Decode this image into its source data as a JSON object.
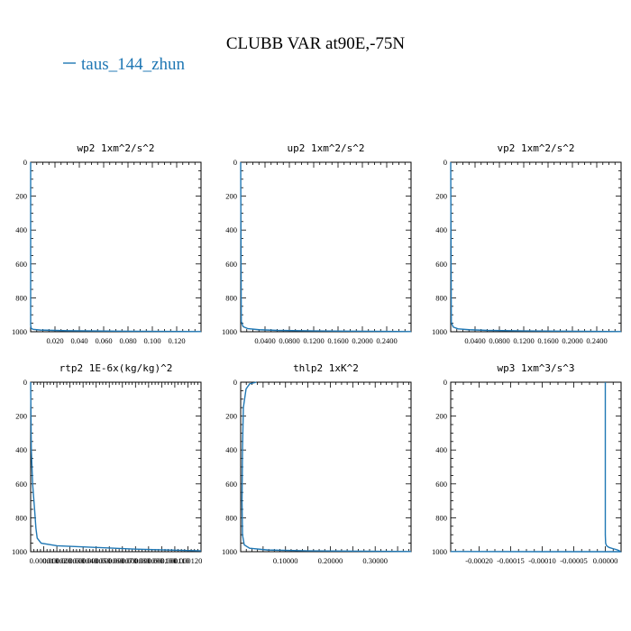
{
  "figure": {
    "title": "CLUBB VAR at90E,-75N",
    "legend": {
      "label": "taus_144_zhun",
      "color": "#1f77b4",
      "placement": "top-left"
    }
  },
  "chart_data": [
    {
      "type": "line",
      "title": "wp2  1xm^2/s^2",
      "xlim": [
        0.0,
        0.14
      ],
      "ylim": [
        1000,
        0
      ],
      "xticks": [
        0.02,
        0.04,
        0.06,
        0.08,
        0.1,
        0.12
      ],
      "xtick_labels": [
        "0.020",
        "0.040",
        "0.060",
        "0.080",
        "0.100",
        "0.120"
      ],
      "yticks": [
        0,
        200,
        400,
        600,
        800,
        1000
      ],
      "ytick_labels": [
        "0",
        "200",
        "400",
        "600",
        "800",
        "1000"
      ],
      "series": [
        {
          "name": "taus_144_zhun",
          "x": [
            0.0,
            0.0,
            0.0005,
            0.002,
            0.008,
            0.03,
            0.08,
            0.14
          ],
          "y": [
            0,
            960,
            980,
            986,
            990,
            994,
            997,
            999
          ]
        }
      ]
    },
    {
      "type": "line",
      "title": "up2  1xm^2/s^2",
      "xlim": [
        0.0,
        0.28
      ],
      "ylim": [
        1000,
        0
      ],
      "xticks": [
        0.04,
        0.08,
        0.12,
        0.16,
        0.2,
        0.24
      ],
      "xtick_labels": [
        "0.0400",
        "0.0800",
        "0.1200",
        "0.1600",
        "0.2000",
        "0.2400"
      ],
      "yticks": [
        0,
        200,
        400,
        600,
        800,
        1000
      ],
      "ytick_labels": [
        "0",
        "200",
        "400",
        "600",
        "800",
        "1000"
      ],
      "series": [
        {
          "name": "taus_144_zhun",
          "x": [
            0.0,
            0.001,
            0.004,
            0.012,
            0.03,
            0.06,
            0.12,
            0.2,
            0.28
          ],
          "y": [
            0,
            940,
            970,
            982,
            988,
            992,
            995,
            997,
            999
          ]
        }
      ]
    },
    {
      "type": "line",
      "title": "vp2  1xm^2/s^2",
      "xlim": [
        0.0,
        0.28
      ],
      "ylim": [
        1000,
        0
      ],
      "xticks": [
        0.04,
        0.08,
        0.12,
        0.16,
        0.2,
        0.24
      ],
      "xtick_labels": [
        "0.0400",
        "0.0800",
        "0.1200",
        "0.1600",
        "0.2000",
        "0.2400"
      ],
      "yticks": [
        0,
        200,
        400,
        600,
        800,
        1000
      ],
      "ytick_labels": [
        "0",
        "200",
        "400",
        "600",
        "800",
        "1000"
      ],
      "series": [
        {
          "name": "taus_144_zhun",
          "x": [
            0.0,
            0.001,
            0.004,
            0.012,
            0.03,
            0.06,
            0.12,
            0.2,
            0.28
          ],
          "y": [
            0,
            945,
            972,
            983,
            988,
            992,
            995,
            997,
            999
          ]
        }
      ]
    },
    {
      "type": "line",
      "title": "rtp2  1E-6x(kg/kg)^2",
      "xlim": [
        0.0,
        0.13
      ],
      "ylim": [
        1000,
        0
      ],
      "xticks": [
        0.01,
        0.02,
        0.03,
        0.04,
        0.05,
        0.06,
        0.07,
        0.08,
        0.09,
        0.1,
        0.11,
        0.12
      ],
      "xtick_labels": [
        "0.000010",
        "0.000020",
        "0.000030",
        "0.000040",
        "0.000050",
        "0.000060",
        "0.000070",
        "0.000080",
        "0.000090",
        "0.000100",
        "0.000110",
        "0.000120"
      ],
      "yticks": [
        0,
        200,
        400,
        600,
        800,
        1000
      ],
      "ytick_labels": [
        "0",
        "200",
        "400",
        "600",
        "800",
        "1000"
      ],
      "series": [
        {
          "name": "taus_144_zhun",
          "x": [
            0.0,
            0.0005,
            0.0015,
            0.003,
            0.004,
            0.005,
            0.008,
            0.02,
            0.05,
            0.08,
            0.13
          ],
          "y": [
            0,
            400,
            600,
            750,
            860,
            920,
            950,
            965,
            975,
            985,
            995
          ]
        }
      ]
    },
    {
      "type": "line",
      "title": "thlp2  1xK^2",
      "xlim": [
        0.0,
        0.38
      ],
      "ylim": [
        1000,
        0
      ],
      "xticks": [
        0.05,
        0.1,
        0.15,
        0.2,
        0.25,
        0.3,
        0.35
      ],
      "xtick_labels": [
        "",
        "0.10000",
        "",
        "0.20000",
        "",
        "0.30000",
        ""
      ],
      "yticks": [
        0,
        200,
        400,
        600,
        800,
        1000
      ],
      "ytick_labels": [
        "0",
        "200",
        "400",
        "600",
        "800",
        "1000"
      ],
      "series": [
        {
          "name": "taus_144_zhun",
          "x": [
            0.035,
            0.02,
            0.012,
            0.006,
            0.004,
            0.003,
            0.004,
            0.008,
            0.02,
            0.06,
            0.15,
            0.38
          ],
          "y": [
            0,
            10,
            40,
            150,
            400,
            700,
            900,
            960,
            980,
            990,
            995,
            999
          ]
        }
      ]
    },
    {
      "type": "line",
      "title": "wp3  1xm^3/s^3",
      "xlim": [
        -0.000245,
        2.5e-05
      ],
      "ylim": [
        1000,
        0
      ],
      "xticks": [
        -0.0002,
        -0.00015,
        -0.0001,
        -5e-05,
        0.0
      ],
      "xtick_labels": [
        "-0.00020",
        "-0.00015",
        "-0.00010",
        "-0.00005",
        "0.00000"
      ],
      "yticks": [
        0,
        200,
        400,
        600,
        800,
        1000
      ],
      "ytick_labels": [
        "0",
        "200",
        "400",
        "600",
        "800",
        "1000"
      ],
      "series": [
        {
          "name": "taus_144_zhun",
          "x": [
            0.0,
            0.0,
            5e-07,
            2e-06,
            6e-06,
            1.2e-05,
            1.8e-05,
            2.2e-05,
            2.35e-05,
            0.0,
            -0.0001,
            -0.000245
          ],
          "y": [
            0,
            900,
            950,
            965,
            975,
            982,
            988,
            994,
            1000,
            1000,
            1000,
            999
          ]
        }
      ]
    }
  ]
}
